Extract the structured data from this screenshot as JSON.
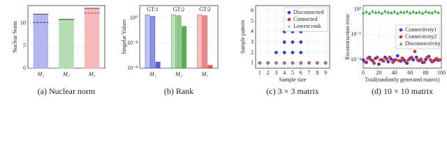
{
  "chart_data": [
    {
      "type": "bar",
      "caption": "(a) Nuclear norm",
      "ylabel": "Nuclear Norm",
      "categories": [
        "M₁",
        "M₂",
        "M₃"
      ],
      "values": [
        12.1,
        10.9,
        13.4
      ],
      "colors": [
        "#b3b6ee",
        "#b6dcb2",
        "#f6b8b8"
      ],
      "dashed_lines": {
        "values": [
          10.2,
          null,
          12.3
        ],
        "colors": [
          "#2b2bd6",
          null,
          "#d62b2b"
        ]
      },
      "ylim": [
        0,
        14
      ],
      "yticks": [
        0,
        5,
        10
      ],
      "grid": true
    },
    {
      "type": "bar",
      "caption": "(b) Rank",
      "ylabel": "Singular Values",
      "log_scale": true,
      "categories": [
        "M₁",
        "M₂",
        "M₃"
      ],
      "colors": [
        "#4a55d8",
        "#4fa84a",
        "#e04848"
      ],
      "annotations": [
        "GT:1",
        "GT:2",
        "GT:2"
      ],
      "series": [
        {
          "values": [
            3.5,
            3.5,
            3.5
          ]
        },
        {
          "values": [
            2.0,
            2.5,
            2.5
          ]
        },
        {
          "values": [
            1e-07,
            0.05,
            3e-08
          ]
        }
      ],
      "ylim": [
        1e-08,
        100
      ],
      "yticks": [
        {
          "value": 1,
          "label": "10⁰"
        },
        {
          "value": 0.0001,
          "label": "10⁻⁴"
        },
        {
          "value": 1e-08,
          "label": "10⁻⁸"
        }
      ],
      "grid": true
    },
    {
      "type": "scatter",
      "caption": "(c) 3 × 3 matrix",
      "xlabel": "Sample size",
      "ylabel": "Sample pattern",
      "legend": "upper right",
      "xlim": [
        0.5,
        9.5
      ],
      "ylim": [
        0.5,
        6.5
      ],
      "xticks": [
        1,
        2,
        3,
        4,
        5,
        6,
        7,
        8,
        9
      ],
      "yticks": [
        1,
        2,
        3,
        4,
        5,
        6
      ],
      "grid": true,
      "series": [
        {
          "name": "Disconnected",
          "color": "#2f3fe0",
          "marker": "circle",
          "x": [
            3,
            4,
            4,
            4,
            5,
            5,
            5,
            5,
            6,
            6,
            6,
            6,
            6
          ],
          "values": [
            2,
            2,
            3,
            4,
            2,
            3,
            4,
            5,
            2,
            3,
            4,
            5,
            6
          ]
        },
        {
          "name": "Connected",
          "color": "#e03030",
          "marker": "circle",
          "x": [
            1,
            2,
            3,
            4,
            5,
            6,
            7,
            8,
            9
          ],
          "values": [
            1,
            1,
            1,
            1,
            1,
            1,
            1,
            1,
            1
          ]
        },
        {
          "name": "Lowest rank",
          "color": "#2ec4c4",
          "marker": "star",
          "x": [
            1,
            2,
            3,
            4,
            5,
            6,
            7,
            8,
            9
          ],
          "values": [
            1,
            1,
            1,
            1,
            1,
            1,
            1,
            1,
            1
          ]
        }
      ]
    },
    {
      "type": "scatter",
      "caption": "(d) 10 × 10 matrix",
      "xlabel": "Trail(randomly generated matrix)",
      "ylabel": "Reconstruction error",
      "log_scale": true,
      "legend": "center right",
      "xlim": [
        0,
        100
      ],
      "ylim": [
        1e-05,
        300
      ],
      "xticks": [
        0,
        20,
        40,
        60,
        80,
        100
      ],
      "yticks": [
        {
          "value": 100,
          "label": "10²"
        },
        {
          "value": 0.1,
          "label": "10⁻¹"
        },
        {
          "value": 0.0001,
          "label": "10⁻⁴"
        }
      ],
      "grid": true,
      "series": [
        {
          "name": "Connectivity1",
          "color": "#2f3fe0",
          "marker": "circle",
          "x": [
            0,
            4,
            8,
            12,
            16,
            20,
            24,
            28,
            32,
            36,
            40,
            44,
            48,
            52,
            56,
            60,
            64,
            68,
            72,
            76,
            80,
            84,
            88,
            92,
            96
          ],
          "values": [
            0.0001,
            5e-05,
            0.0002,
            8e-05,
            0.00015,
            3e-05,
            0.0001,
            0.0002,
            6e-05,
            0.00012,
            9e-05,
            0.0003,
            7e-05,
            0.0001,
            4e-05,
            0.00015,
            0.0001,
            0.0002,
            8e-05,
            5e-05,
            0.00011,
            0.00025,
            6e-05,
            0.0001,
            9e-05
          ]
        },
        {
          "name": "Connectivity2",
          "color": "#e03030",
          "marker": "circle",
          "x": [
            2,
            6,
            10,
            14,
            18,
            22,
            26,
            30,
            34,
            38,
            42,
            46,
            50,
            54,
            58,
            62,
            66,
            70,
            74,
            78,
            82,
            86,
            90,
            94,
            98
          ],
          "values": [
            6e-05,
            0.00015,
            0.0001,
            4e-05,
            0.0002,
            0.0001,
            7e-05,
            0.00013,
            0.0002,
            5e-05,
            0.0001,
            8e-05,
            0.00016,
            6e-05,
            0.0001,
            0.0002,
            0.001,
            9e-05,
            0.00012,
            5e-05,
            0.0002,
            0.0001,
            7e-05,
            0.00014,
            0.0001
          ]
        },
        {
          "name": "Disconnectivity",
          "color": "#3fa83f",
          "marker": "triangle",
          "x": [
            0,
            4,
            8,
            12,
            16,
            20,
            24,
            28,
            32,
            36,
            40,
            44,
            48,
            52,
            56,
            60,
            64,
            68,
            72,
            76,
            80,
            84,
            88,
            92,
            96
          ],
          "values": [
            40,
            55,
            35,
            60,
            45,
            50,
            38,
            62,
            48,
            42,
            58,
            36,
            52,
            46,
            60,
            40,
            55,
            44,
            50,
            38,
            56,
            47,
            42,
            60,
            45
          ]
        }
      ]
    }
  ]
}
